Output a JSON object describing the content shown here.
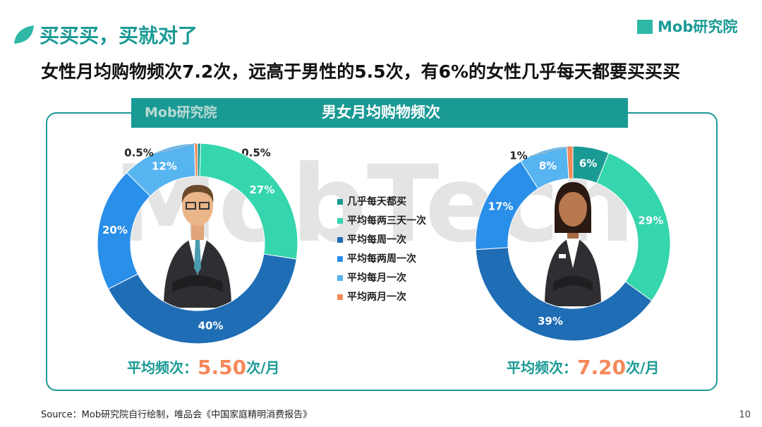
{
  "header": {
    "title": "买买买，买就对了",
    "logo": "Mob研究院"
  },
  "subtitle": "女性月均购物频次7.2次，远高于男性的5.5次，有6%的女性几乎每天都要买买买",
  "panel": {
    "title": "男女月均购物频次",
    "logo": "Mob研究院",
    "watermark": "MobTech"
  },
  "chart_data": [
    {
      "type": "pie",
      "categories": [
        "几乎每天都买",
        "平均每两三天一次",
        "平均每周一次",
        "平均每两周一次",
        "平均每月一次",
        "平均两月一次"
      ],
      "values": [
        0.5,
        27,
        40,
        20,
        12,
        0.5
      ],
      "value_labels": [
        "0.5%",
        "27%",
        "40%",
        "20%",
        "12%",
        "0.5%"
      ],
      "colors": [
        "#1a9a94",
        "#35d6ad",
        "#1f6db5",
        "#2a8fe8",
        "#56b4f0",
        "#f5885a"
      ],
      "average": {
        "prefix": "平均频次：",
        "value": "5.50",
        "suffix": "次/月"
      }
    },
    {
      "type": "pie",
      "values": [
        6,
        29,
        39,
        17,
        8,
        1
      ],
      "value_labels": [
        "6%",
        "29%",
        "39%",
        "17%",
        "8%",
        "1%"
      ],
      "colors": [
        "#1a9a94",
        "#35d6ad",
        "#1f6db5",
        "#2a8fe8",
        "#56b4f0",
        "#f5885a"
      ],
      "average": {
        "prefix": "平均频次：",
        "value": "7.20",
        "suffix": "次/月"
      }
    }
  ],
  "source": "Source：Mob研究院自行绘制，唯品会《中国家庭精明消费报告》",
  "page": "10"
}
